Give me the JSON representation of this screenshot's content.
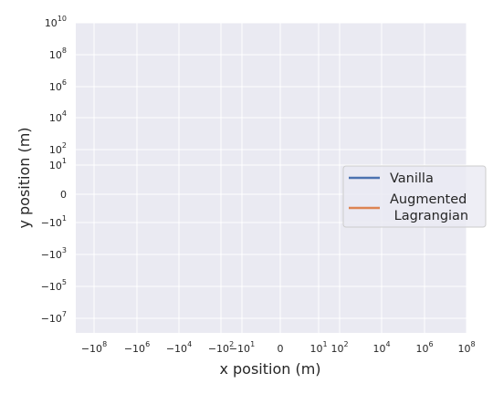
{
  "chart_data": {
    "type": "line",
    "title": "",
    "xlabel": "x position (m)",
    "ylabel": "y position (m)",
    "xscale": "symlog",
    "yscale": "symlog",
    "xlim": [
      -150000000.0,
      100000000.0
    ],
    "ylim": [
      -30000000.0,
      10000000000.0
    ],
    "grid": true,
    "legend_position": "center-right",
    "x_ticks": [
      {
        "base": "−10",
        "exp": "8"
      },
      {
        "base": "−10",
        "exp": "6"
      },
      {
        "base": "−10",
        "exp": "4"
      },
      {
        "base": "−10",
        "exp": "2"
      },
      {
        "base": "−10",
        "exp": "1"
      },
      {
        "base": "0",
        "exp": ""
      },
      {
        "base": "10",
        "exp": "1"
      },
      {
        "base": "10",
        "exp": "2"
      },
      {
        "base": "10",
        "exp": "4"
      },
      {
        "base": "10",
        "exp": "6"
      },
      {
        "base": "10",
        "exp": "8"
      }
    ],
    "y_ticks": [
      {
        "base": "10",
        "exp": "10"
      },
      {
        "base": "10",
        "exp": "8"
      },
      {
        "base": "10",
        "exp": "6"
      },
      {
        "base": "10",
        "exp": "4"
      },
      {
        "base": "10",
        "exp": "2"
      },
      {
        "base": "10",
        "exp": "1"
      },
      {
        "base": "0",
        "exp": ""
      },
      {
        "base": "−10",
        "exp": "1"
      },
      {
        "base": "−10",
        "exp": "3"
      },
      {
        "base": "−10",
        "exp": "5"
      },
      {
        "base": "−10",
        "exp": "7"
      }
    ],
    "series": [
      {
        "name": "Vanilla",
        "color": "#4c72b0",
        "x": [],
        "y": []
      },
      {
        "name": "Augmented\n Lagrangian",
        "color": "#dd8452",
        "x": [],
        "y": []
      }
    ]
  }
}
